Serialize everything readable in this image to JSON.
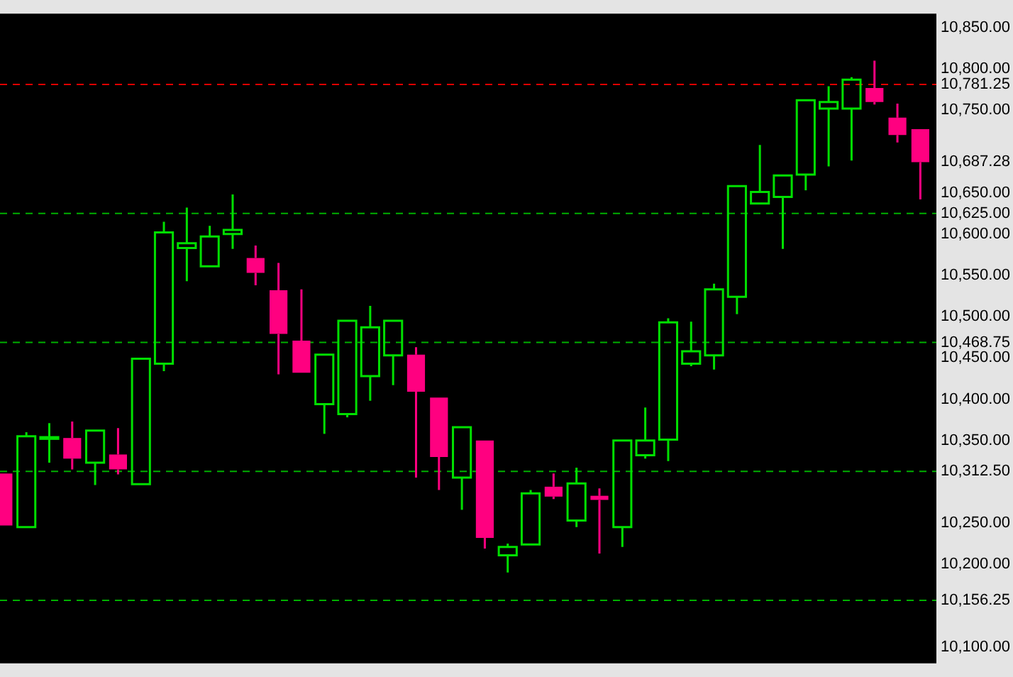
{
  "chart_data": {
    "type": "candlestick",
    "categories": [
      null,
      null,
      null,
      null,
      null,
      null,
      null,
      null,
      null,
      null,
      null,
      null,
      null,
      null,
      null,
      null,
      null,
      null,
      null,
      null,
      null,
      null,
      null,
      null,
      null,
      null,
      null,
      null,
      null,
      null,
      null,
      null,
      null,
      null,
      null,
      null,
      null,
      null,
      null,
      null,
      null
    ],
    "ohlc": [
      [
        10310,
        10310,
        10247,
        10247
      ],
      [
        10245,
        10360,
        10245,
        10355
      ],
      [
        10352,
        10371,
        10323,
        10354
      ],
      [
        10353,
        10373,
        10315,
        10328
      ],
      [
        10323,
        10362,
        10296,
        10362
      ],
      [
        10333,
        10365,
        10309,
        10315
      ],
      [
        10297,
        10449,
        10297,
        10449
      ],
      [
        10443,
        10615,
        10434,
        10602
      ],
      [
        10583,
        10632,
        10543,
        10589
      ],
      [
        10561,
        10610,
        10561,
        10597
      ],
      [
        10600,
        10648,
        10582,
        10605
      ],
      [
        10571,
        10586,
        10538,
        10553
      ],
      [
        10532,
        10565,
        10430,
        10479
      ],
      [
        10471,
        10533,
        10432,
        10432
      ],
      [
        10394,
        10454,
        10358,
        10454
      ],
      [
        10382,
        10495,
        10378,
        10495
      ],
      [
        10428,
        10513,
        10398,
        10487
      ],
      [
        10453,
        10495,
        10417,
        10495
      ],
      [
        10454,
        10463,
        10305,
        10409
      ],
      [
        10402,
        10402,
        10290,
        10330
      ],
      [
        10305,
        10366,
        10266,
        10366
      ],
      [
        10350,
        10350,
        10219,
        10232
      ],
      [
        10211,
        10225,
        10190,
        10221
      ],
      [
        10224,
        10290,
        10224,
        10286
      ],
      [
        10294,
        10310,
        10279,
        10282
      ],
      [
        10253,
        10317,
        10245,
        10298
      ],
      [
        10283,
        10292,
        10213,
        10278
      ],
      [
        10245,
        10350,
        10221,
        10350
      ],
      [
        10332,
        10390,
        10328,
        10350
      ],
      [
        10351,
        10498,
        10325,
        10493
      ],
      [
        10443,
        10494,
        10440,
        10458
      ],
      [
        10453,
        10540,
        10436,
        10533
      ],
      [
        10524,
        10658,
        10503,
        10658
      ],
      [
        10637,
        10708,
        10636,
        10651
      ],
      [
        10645,
        10671,
        10582,
        10671
      ],
      [
        10672,
        10762,
        10653,
        10762
      ],
      [
        10752,
        10779,
        10682,
        10760
      ],
      [
        10752,
        10790,
        10689,
        10787
      ],
      [
        10777,
        10810,
        10757,
        10760
      ],
      [
        10741,
        10758,
        10711,
        10720
      ],
      [
        10727,
        10727,
        10642,
        10687
      ]
    ],
    "colors": [
      "#ff0080",
      "#00e000",
      "#00e000",
      "#ff0080",
      "#00e000",
      "#ff0080",
      "#00e000",
      "#00e000",
      "#00e000",
      "#00e000",
      "#00e000",
      "#ff0080",
      "#ff0080",
      "#ff0080",
      "#00e000",
      "#00e000",
      "#00e000",
      "#00e000",
      "#ff0080",
      "#ff0080",
      "#00e000",
      "#ff0080",
      "#00e000",
      "#00e000",
      "#ff0080",
      "#00e000",
      "#ff0080",
      "#00e000",
      "#00e000",
      "#00e000",
      "#00e000",
      "#00e000",
      "#00e000",
      "#00e000",
      "#00e000",
      "#00e000",
      "#00e000",
      "#00e000",
      "#ff0080",
      "#ff0080",
      "#ff0080"
    ],
    "ylim": [
      10080,
      10867
    ],
    "yticks": [
      {
        "value": 10100,
        "label": "10,100.00"
      },
      {
        "value": 10200,
        "label": "10,200.00"
      },
      {
        "value": 10250,
        "label": "10,250.00"
      },
      {
        "value": 10350,
        "label": "10,350.00"
      },
      {
        "value": 10400,
        "label": "10,400.00"
      },
      {
        "value": 10450,
        "label": "10,450.00"
      },
      {
        "value": 10500,
        "label": "10,500.00"
      },
      {
        "value": 10550,
        "label": "10,550.00"
      },
      {
        "value": 10600,
        "label": "10,600.00"
      },
      {
        "value": 10650,
        "label": "10,650.00"
      },
      {
        "value": 10687.28,
        "label": "10,687.28"
      },
      {
        "value": 10750,
        "label": "10,750.00"
      },
      {
        "value": 10800,
        "label": "10,800.00"
      },
      {
        "value": 10850,
        "label": "10,850.00"
      }
    ],
    "ref_lines": [
      {
        "axis": "y",
        "value": 10156.25,
        "label": "10,156.25",
        "color": "#00b000",
        "line_style": "dashed"
      },
      {
        "axis": "y",
        "value": 10312.5,
        "label": "10,312.50",
        "color": "#00b000",
        "line_style": "dashed"
      },
      {
        "axis": "y",
        "value": 10468.75,
        "label": "10,468.75",
        "color": "#00b000",
        "line_style": "dashed"
      },
      {
        "axis": "y",
        "value": 10625,
        "label": "10,625.00",
        "color": "#00b000",
        "line_style": "dashed"
      },
      {
        "axis": "y",
        "value": 10781.25,
        "label": "10,781.25",
        "color": "#e00000",
        "line_style": "dashed"
      }
    ],
    "legend": false
  }
}
